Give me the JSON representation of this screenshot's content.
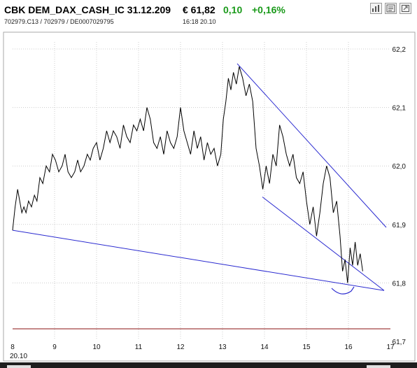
{
  "header": {
    "name": "CBK DEM_DAX_CASH_IC 31.12.209",
    "price": "€ 61,82",
    "change": "0,10",
    "change_pct": "+0,16%",
    "codes": "702979.C13  /  702979  /  DE0007029795",
    "time": "16:18   20.10",
    "change_color": "#1a9a1a"
  },
  "toolbar": {
    "icons": [
      "bar-chart-icon",
      "news-icon",
      "expand-icon"
    ]
  },
  "chart_data": {
    "type": "line",
    "title": "",
    "xlabel": "",
    "ylabel": "",
    "x_ticks": [
      "8",
      "9",
      "10",
      "11",
      "12",
      "13",
      "14",
      "15",
      "16",
      "17"
    ],
    "x_date_label": "20.10",
    "y_ticks": [
      "62,2",
      "62,1",
      "62,0",
      "61,9",
      "61,8",
      "61,7"
    ],
    "xlim": [
      8,
      17
    ],
    "ylim": [
      61.7,
      62.2
    ],
    "grid": true,
    "line_color": "#000000",
    "reference_line": {
      "y": 61.72,
      "color": "#8b1010"
    },
    "trendlines": [
      {
        "x1": 8.0,
        "y1": 61.89,
        "x2": 16.85,
        "y2": 61.787
      },
      {
        "x1": 13.35,
        "y1": 62.175,
        "x2": 16.9,
        "y2": 61.895
      },
      {
        "x1": 13.95,
        "y1": 61.947,
        "x2": 16.85,
        "y2": 61.787
      }
    ],
    "trendline_color": "#2a2ad0",
    "series": [
      {
        "x": [
          8.0,
          8.06,
          8.12,
          8.17,
          8.22,
          8.27,
          8.32,
          8.38,
          8.45,
          8.52,
          8.58,
          8.65,
          8.72,
          8.8,
          8.88,
          8.95,
          9.02,
          9.1,
          9.18,
          9.25,
          9.32,
          9.4,
          9.48,
          9.55,
          9.62,
          9.7,
          9.78,
          9.85,
          9.92,
          10.0,
          10.08,
          10.16,
          10.24,
          10.32,
          10.4,
          10.48,
          10.56,
          10.64,
          10.72,
          10.8,
          10.88,
          10.96,
          11.04,
          11.12,
          11.2,
          11.28,
          11.36,
          11.44,
          11.52,
          11.6,
          11.68,
          11.76,
          11.84,
          11.92,
          12.0,
          12.08,
          12.16,
          12.24,
          12.32,
          12.4,
          12.48,
          12.56,
          12.64,
          12.72,
          12.8,
          12.88,
          12.96,
          13.02,
          13.08,
          13.14,
          13.2,
          13.26,
          13.33,
          13.4,
          13.48,
          13.56,
          13.64,
          13.72,
          13.8,
          13.88,
          13.96,
          14.04,
          14.12,
          14.2,
          14.28,
          14.36,
          14.44,
          14.52,
          14.6,
          14.68,
          14.76,
          14.84,
          14.92,
          15.0,
          15.08,
          15.16,
          15.24,
          15.32,
          15.4,
          15.48,
          15.56,
          15.64,
          15.72,
          15.8,
          15.86,
          15.92,
          15.98,
          16.04,
          16.1,
          16.16,
          16.22,
          16.28,
          16.34
        ],
        "values": [
          61.89,
          61.93,
          61.96,
          61.94,
          61.92,
          61.93,
          61.92,
          61.94,
          61.93,
          61.95,
          61.94,
          61.98,
          61.97,
          62.0,
          61.99,
          62.02,
          62.01,
          61.99,
          62.0,
          62.02,
          61.99,
          61.98,
          61.99,
          62.01,
          61.99,
          62.0,
          62.02,
          62.01,
          62.03,
          62.04,
          62.01,
          62.03,
          62.06,
          62.04,
          62.06,
          62.05,
          62.03,
          62.07,
          62.05,
          62.04,
          62.07,
          62.06,
          62.08,
          62.06,
          62.1,
          62.08,
          62.04,
          62.03,
          62.05,
          62.02,
          62.06,
          62.04,
          62.03,
          62.05,
          62.1,
          62.06,
          62.04,
          62.02,
          62.06,
          62.03,
          62.05,
          62.01,
          62.04,
          62.02,
          62.03,
          62.0,
          62.02,
          62.08,
          62.11,
          62.15,
          62.13,
          62.16,
          62.14,
          62.17,
          62.15,
          62.12,
          62.14,
          62.11,
          62.03,
          62.0,
          61.96,
          62.0,
          61.97,
          62.02,
          62.0,
          62.07,
          62.05,
          62.02,
          62.0,
          62.02,
          61.98,
          61.97,
          61.99,
          61.94,
          61.9,
          61.93,
          61.88,
          61.92,
          61.97,
          62.0,
          61.98,
          61.92,
          61.94,
          61.88,
          61.82,
          61.84,
          61.8,
          61.86,
          61.83,
          61.87,
          61.83,
          61.85,
          61.82
        ]
      }
    ]
  }
}
